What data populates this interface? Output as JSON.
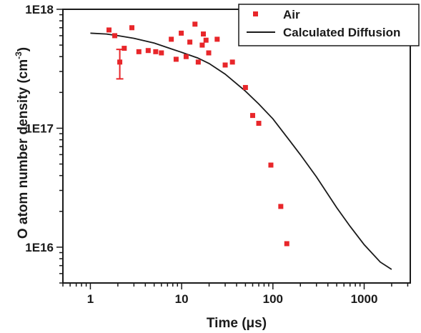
{
  "chart_data": {
    "type": "scatter",
    "xlabel": "Time (μs)",
    "ylabel_main": "O atom number density (cm",
    "ylabel_exp": "-3",
    "ylabel_close": ")",
    "x_scale": "log",
    "y_scale": "log",
    "xlim": [
      0.5,
      3200
    ],
    "ylim": [
      5000000000000000.0,
      1e+18
    ],
    "x_ticks": [
      {
        "value": 1,
        "label": "1"
      },
      {
        "value": 10,
        "label": "10"
      },
      {
        "value": 100,
        "label": "100"
      },
      {
        "value": 1000,
        "label": "1000"
      }
    ],
    "y_ticks": [
      {
        "value": 1e+16,
        "label": "1E16"
      },
      {
        "value": 1e+17,
        "label": "1E17"
      },
      {
        "value": 1e+18,
        "label": "1E18"
      }
    ],
    "grid": false,
    "legend_position": "top-right",
    "series": [
      {
        "name": "Air",
        "kind": "scatter",
        "color": "#e8262a",
        "points": [
          [
            1.6,
            6.7e+17
          ],
          [
            1.85,
            6e+17
          ],
          [
            2.1,
            3.6e+17
          ],
          [
            2.35,
            4.7e+17
          ],
          [
            2.85,
            7e+17
          ],
          [
            3.4,
            4.4e+17
          ],
          [
            4.3,
            4.5e+17
          ],
          [
            5.2,
            4.4e+17
          ],
          [
            6.0,
            4.3e+17
          ],
          [
            7.7,
            5.6e+17
          ],
          [
            8.7,
            3.8e+17
          ],
          [
            9.9,
            6.3e+17
          ],
          [
            11.2,
            4e+17
          ],
          [
            12.3,
            5.3e+17
          ],
          [
            14.0,
            7.5e+17
          ],
          [
            15.2,
            3.6e+17
          ],
          [
            16.8,
            5e+17
          ],
          [
            17.3,
            6.2e+17
          ],
          [
            18.5,
            5.5e+17
          ],
          [
            19.8,
            4.3e+17
          ],
          [
            24.5,
            5.6e+17
          ],
          [
            30.0,
            3.4e+17
          ],
          [
            36.0,
            3.6e+17
          ],
          [
            50.0,
            2.2e+17
          ],
          [
            60.0,
            1.28e+17
          ],
          [
            70.0,
            1.1e+17
          ],
          [
            95.0,
            4.9e+16
          ],
          [
            122.0,
            2.2e+16
          ],
          [
            142.0,
            1.07e+16
          ]
        ],
        "error_bars": [
          {
            "x": 2.1,
            "y": 3.6e+17,
            "low": 2.6e+17,
            "high": 4.6e+17
          }
        ]
      },
      {
        "name": "Calculated Diffusion",
        "kind": "line",
        "color": "#1a1a1a",
        "points": [
          [
            1.0,
            6.3e+17
          ],
          [
            1.5,
            6.2e+17
          ],
          [
            2.0,
            6e+17
          ],
          [
            3.0,
            5.7e+17
          ],
          [
            5.0,
            5.2e+17
          ],
          [
            8.0,
            4.6e+17
          ],
          [
            10.0,
            4.35e+17
          ],
          [
            15.0,
            3.9e+17
          ],
          [
            20.0,
            3.5e+17
          ],
          [
            30.0,
            2.85e+17
          ],
          [
            50.0,
            2.05e+17
          ],
          [
            70.0,
            1.6e+17
          ],
          [
            100.0,
            1.2e+17
          ],
          [
            150.0,
            8e+16
          ],
          [
            200.0,
            6e+16
          ],
          [
            300.0,
            3.9e+16
          ],
          [
            500.0,
            2.15e+16
          ],
          [
            700.0,
            1.5e+16
          ],
          [
            1000.0,
            1.05e+16
          ],
          [
            1500.0,
            7500000000000000.0
          ],
          [
            2000.0,
            6500000000000000.0
          ]
        ]
      }
    ]
  }
}
